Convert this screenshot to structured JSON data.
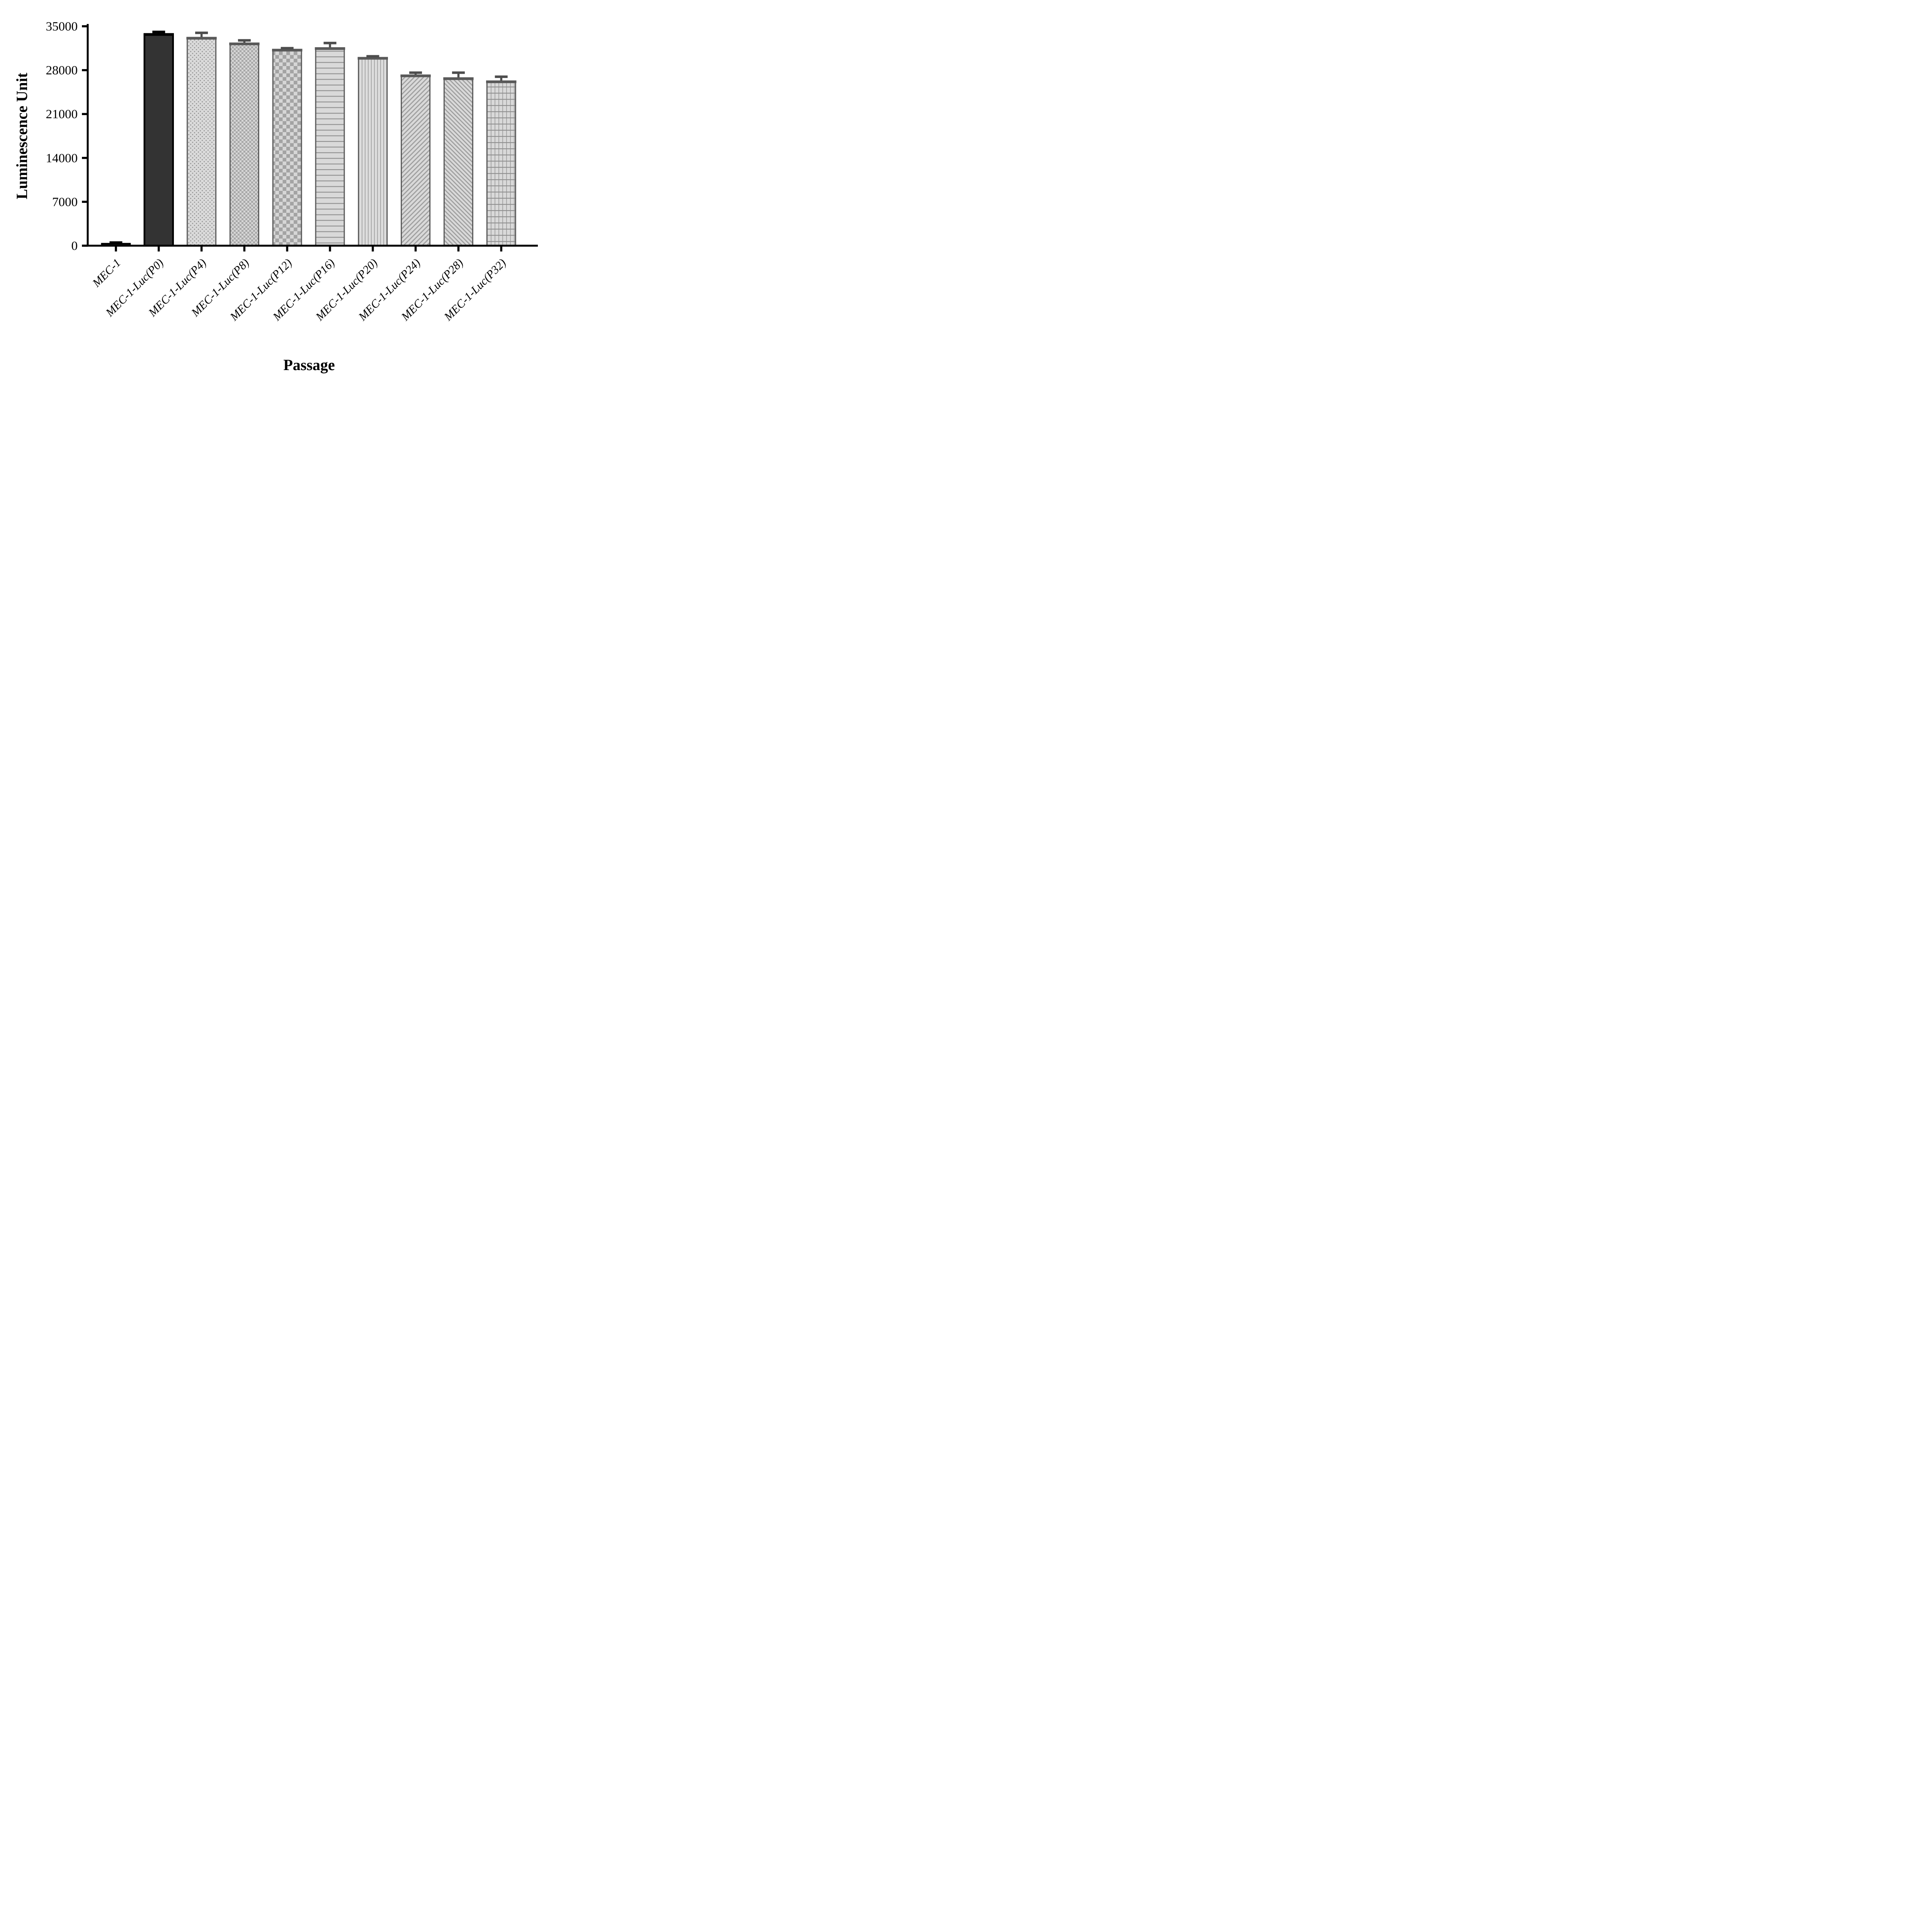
{
  "figure": {
    "background": "#ffffff",
    "title": ""
  },
  "chart_data": {
    "type": "bar",
    "title": "",
    "xlabel": "Passage",
    "ylabel": "Luminescence Unit",
    "categories": [
      "MEC-1",
      "MEC-1-Luc(P0)",
      "MEC-1-Luc(P4)",
      "MEC-1-Luc(P8)",
      "MEC-1-Luc(P12)",
      "MEC-1-Luc(P16)",
      "MEC-1-Luc(P20)",
      "MEC-1-Luc(P24)",
      "MEC-1-Luc(P28)",
      "MEC-1-Luc(P32)"
    ],
    "values": [
      350,
      33700,
      33100,
      32200,
      31200,
      31450,
      29900,
      27100,
      26650,
      26150
    ],
    "errors": [
      150,
      400,
      850,
      550,
      300,
      880,
      310,
      500,
      950,
      800
    ],
    "error_direction": "up",
    "bar_styles": [
      "solid-black",
      "solid-dark",
      "dots",
      "checker-fine",
      "checker-coarse",
      "horizontal-lines",
      "vertical-lines",
      "diagonal-up",
      "diagonal-down",
      "grid"
    ],
    "ylim": [
      0,
      35000
    ],
    "yticks": [
      0,
      7000,
      14000,
      21000,
      28000,
      35000
    ],
    "ytick_labels": [
      "0",
      "7000",
      "14000",
      "21000",
      "28000",
      "35000"
    ],
    "grid": false,
    "legend": "none",
    "colors": {
      "axis": "#000000",
      "solid_black_fill": "#0d0d0d",
      "solid_dark_fill": "#333333",
      "pattern_bg": "#d9d9d9",
      "pattern_ink": "#9e9e9e",
      "bar_border": "#595959",
      "error_bar_gray": "#4d4d4d",
      "error_bar_black": "#000000"
    }
  }
}
